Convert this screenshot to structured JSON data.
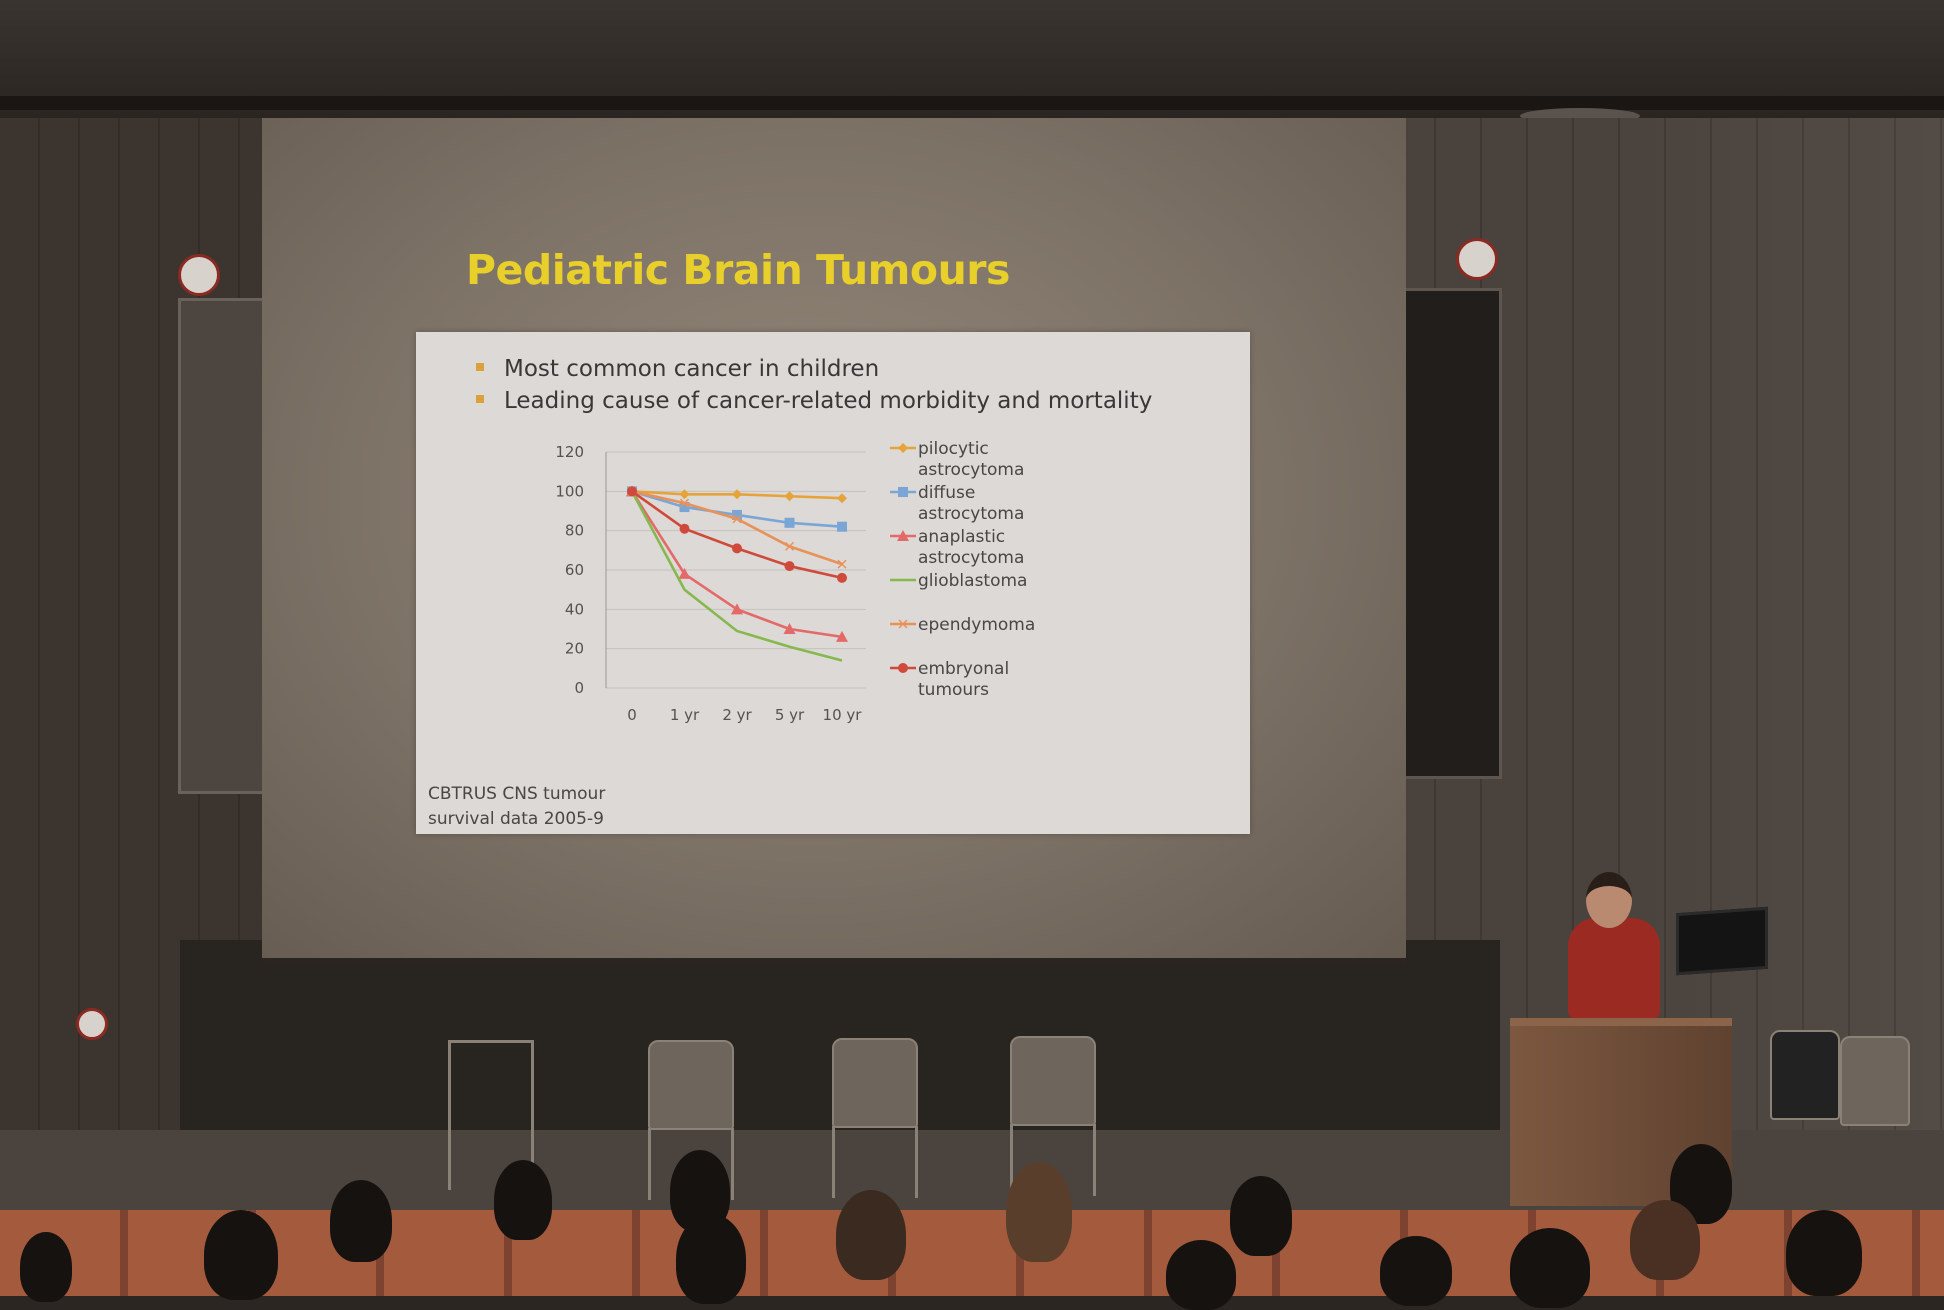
{
  "slide": {
    "title": "Pediatric Brain Tumours",
    "bullets": [
      "Most common cancer in children",
      "Leading cause of cancer-related morbidity and mortality"
    ],
    "source_note": [
      "CBTRUS CNS tumour",
      "survival data 2005-9"
    ]
  },
  "colors": {
    "title": "#e8cf2a",
    "bullet": "#d8a13c",
    "pilocytic": "#e6a33a",
    "diffuse": "#7aa6d6",
    "anaplastic": "#e46a6a",
    "glioblastoma": "#86b84e",
    "ependymoma": "#e8925a",
    "embryonal": "#cf4a3a"
  },
  "chart_data": {
    "type": "line",
    "categories": [
      "0",
      "1 yr",
      "2 yr",
      "5 yr",
      "10 yr"
    ],
    "ylim": [
      0,
      120
    ],
    "yticks": [
      "0",
      "20",
      "40",
      "60",
      "80",
      "100",
      "120"
    ],
    "grid": true,
    "legend_position": "right",
    "series": [
      {
        "name": "pilocytic astrocytoma",
        "legend_lines": [
          "pilocytic",
          "astrocytoma"
        ],
        "marker": "diamond",
        "color": "#e6a33a",
        "values": [
          100,
          98.5,
          98.5,
          97.5,
          96.5
        ]
      },
      {
        "name": "diffuse astrocytoma",
        "legend_lines": [
          "diffuse",
          "astrocytoma"
        ],
        "marker": "square",
        "color": "#7aa6d6",
        "values": [
          100,
          92,
          88,
          84,
          82
        ]
      },
      {
        "name": "anaplastic astrocytoma",
        "legend_lines": [
          "anaplastic",
          "astrocytoma"
        ],
        "marker": "triangle",
        "color": "#e46a6a",
        "values": [
          100,
          58,
          40,
          30,
          26
        ]
      },
      {
        "name": "glioblastoma",
        "legend_lines": [
          "glioblastoma"
        ],
        "marker": "none",
        "color": "#86b84e",
        "values": [
          100,
          50,
          29,
          21,
          14
        ]
      },
      {
        "name": "ependymoma",
        "legend_lines": [
          "ependymoma"
        ],
        "marker": "cross",
        "color": "#e8925a",
        "values": [
          100,
          94,
          86,
          72,
          63
        ]
      },
      {
        "name": "embryonal tumours",
        "legend_lines": [
          "embryonal",
          "tumours"
        ],
        "marker": "circle",
        "color": "#cf4a3a",
        "values": [
          100,
          81,
          71,
          62,
          56
        ]
      }
    ]
  }
}
